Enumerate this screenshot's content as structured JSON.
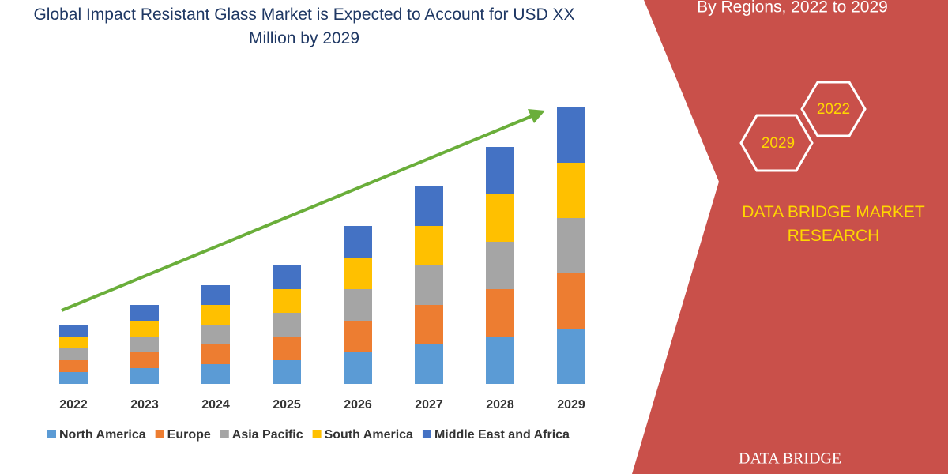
{
  "chart_data": {
    "type": "bar",
    "stacked": true,
    "title": "Global Impact Resistant Glass Market is Expected to Account for USD XX Million by 2029",
    "categories": [
      "2022",
      "2023",
      "2024",
      "2025",
      "2026",
      "2027",
      "2028",
      "2029"
    ],
    "series": [
      {
        "name": "North America",
        "color": "#5b9bd5",
        "values": [
          15,
          20,
          25,
          30,
          40,
          50,
          60,
          70
        ]
      },
      {
        "name": "Europe",
        "color": "#ed7d31",
        "values": [
          15,
          20,
          25,
          30,
          40,
          50,
          60,
          70
        ]
      },
      {
        "name": "Asia Pacific",
        "color": "#a5a5a5",
        "values": [
          15,
          20,
          25,
          30,
          40,
          50,
          60,
          70
        ]
      },
      {
        "name": "South America",
        "color": "#ffc000",
        "values": [
          15,
          20,
          25,
          30,
          40,
          50,
          60,
          70
        ]
      },
      {
        "name": "Middle East and Africa",
        "color": "#4472c4",
        "values": [
          15,
          20,
          25,
          30,
          40,
          50,
          60,
          70
        ]
      }
    ],
    "ylim": [
      0,
      360
    ],
    "legend": "bottom",
    "grid": false
  },
  "panel": {
    "subtitle": "By Regions, 2022 to 2029",
    "hexagons": [
      "2022",
      "2029"
    ],
    "brand": "DATA BRIDGE MARKET RESEARCH",
    "logo": "DATA BRIDGE"
  }
}
